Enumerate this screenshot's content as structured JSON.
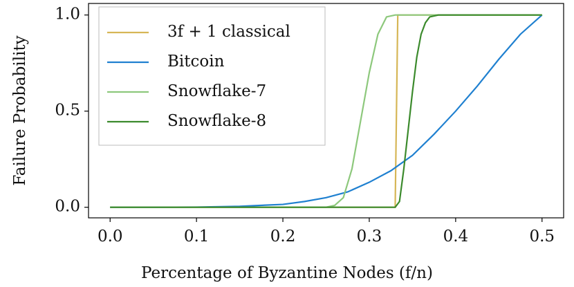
{
  "chart_data": {
    "type": "line",
    "xlabel": "Percentage of Byzantine Nodes (f/n)",
    "ylabel": "Failure Probability",
    "xlim": [
      -0.025,
      0.525
    ],
    "ylim": [
      -0.055,
      1.06
    ],
    "xticks": [
      {
        "value": 0,
        "label": "0.0"
      },
      {
        "value": 0.1,
        "label": "0.1"
      },
      {
        "value": 0.2,
        "label": "0.2"
      },
      {
        "value": 0.3,
        "label": "0.3"
      },
      {
        "value": 0.4,
        "label": "0.4"
      },
      {
        "value": 0.5,
        "label": "0.5"
      }
    ],
    "yticks": [
      {
        "value": 0,
        "label": "0.0"
      },
      {
        "value": 0.5,
        "label": "0.5"
      },
      {
        "value": 1,
        "label": "1.0"
      }
    ],
    "legend": "upper left",
    "series": [
      {
        "name": "3f + 1 classical",
        "color": "#d6b656",
        "x": [
          0,
          0.33,
          0.333,
          0.5
        ],
        "values": [
          0,
          0,
          1,
          1
        ]
      },
      {
        "name": "Bitcoin",
        "color": "#1f80d0",
        "x": [
          0,
          0.05,
          0.1,
          0.15,
          0.2,
          0.225,
          0.25,
          0.275,
          0.3,
          0.325,
          0.35,
          0.375,
          0.4,
          0.425,
          0.45,
          0.475,
          0.5
        ],
        "values": [
          0,
          0,
          0.001,
          0.005,
          0.015,
          0.03,
          0.05,
          0.08,
          0.13,
          0.19,
          0.27,
          0.38,
          0.5,
          0.63,
          0.77,
          0.9,
          1
        ]
      },
      {
        "name": "Snowflake-7",
        "color": "#8dc87c",
        "x": [
          0,
          0.25,
          0.26,
          0.27,
          0.28,
          0.29,
          0.3,
          0.31,
          0.32,
          0.33,
          0.5
        ],
        "values": [
          0,
          0,
          0.01,
          0.05,
          0.2,
          0.45,
          0.7,
          0.9,
          0.99,
          1,
          1
        ]
      },
      {
        "name": "Snowflake-8",
        "color": "#3b8a2c",
        "x": [
          0,
          0.33,
          0.335,
          0.34,
          0.345,
          0.35,
          0.355,
          0.36,
          0.365,
          0.37,
          0.38,
          0.5
        ],
        "values": [
          0,
          0,
          0.03,
          0.2,
          0.4,
          0.6,
          0.78,
          0.9,
          0.96,
          0.99,
          1,
          1
        ]
      }
    ]
  }
}
